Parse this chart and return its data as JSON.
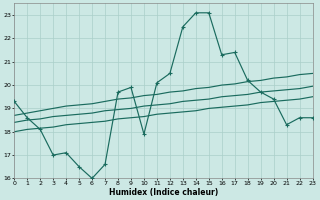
{
  "xlabel": "Humidex (Indice chaleur)",
  "x_values": [
    0,
    1,
    2,
    3,
    4,
    5,
    6,
    7,
    8,
    9,
    10,
    11,
    12,
    13,
    14,
    15,
    16,
    17,
    18,
    19,
    20,
    21,
    22,
    23
  ],
  "main_line": [
    19.3,
    18.6,
    18.1,
    17.0,
    17.1,
    16.5,
    16.0,
    16.6,
    19.7,
    19.9,
    17.9,
    20.1,
    20.5,
    22.5,
    23.1,
    23.1,
    21.3,
    21.4,
    20.2,
    19.7,
    19.4,
    18.3,
    18.6,
    18.6
  ],
  "trend_upper": [
    18.7,
    18.8,
    18.9,
    19.0,
    19.1,
    19.15,
    19.2,
    19.3,
    19.4,
    19.45,
    19.55,
    19.6,
    19.7,
    19.75,
    19.85,
    19.9,
    20.0,
    20.05,
    20.15,
    20.2,
    20.3,
    20.35,
    20.45,
    20.5
  ],
  "trend_mid": [
    18.4,
    18.5,
    18.55,
    18.65,
    18.7,
    18.75,
    18.8,
    18.9,
    18.95,
    19.0,
    19.1,
    19.15,
    19.2,
    19.3,
    19.35,
    19.4,
    19.5,
    19.55,
    19.6,
    19.7,
    19.75,
    19.8,
    19.85,
    19.95
  ],
  "trend_lower": [
    18.0,
    18.1,
    18.15,
    18.2,
    18.3,
    18.35,
    18.4,
    18.45,
    18.55,
    18.6,
    18.65,
    18.75,
    18.8,
    18.85,
    18.9,
    19.0,
    19.05,
    19.1,
    19.15,
    19.25,
    19.3,
    19.35,
    19.4,
    19.5
  ],
  "line_color": "#1a6b5e",
  "bg_color": "#cce8e4",
  "grid_color": "#aacfc9",
  "ylim": [
    16,
    23.5
  ],
  "xlim": [
    0,
    23
  ],
  "yticks": [
    16,
    17,
    18,
    19,
    20,
    21,
    22,
    23
  ],
  "xticks": [
    0,
    1,
    2,
    3,
    4,
    5,
    6,
    7,
    8,
    9,
    10,
    11,
    12,
    13,
    14,
    15,
    16,
    17,
    18,
    19,
    20,
    21,
    22,
    23
  ]
}
